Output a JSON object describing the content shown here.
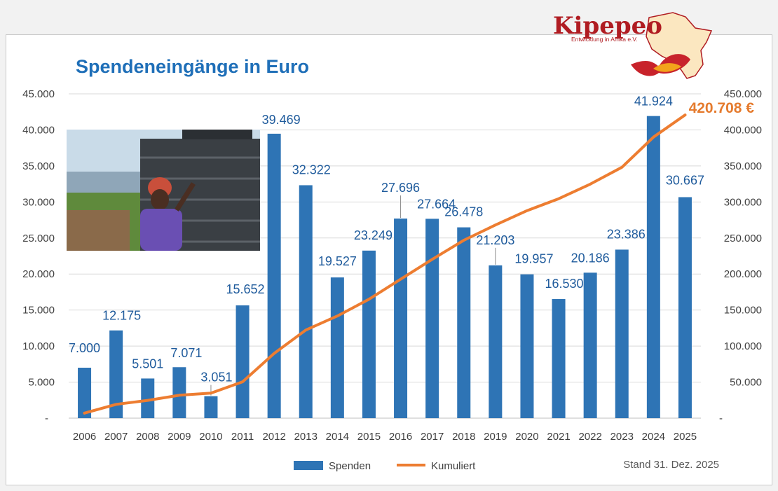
{
  "logo": {
    "word": "Kipepeo",
    "subtitle": "Entwicklung in Afrika e.V."
  },
  "footer": {
    "stand": "Stand 31. Dez. 2025"
  },
  "colors": {
    "bars": "#2e74b5",
    "line": "#ed7d31",
    "title": "#1f6fb8",
    "data_labels": "#1f5b9c",
    "total": "#e57b2e"
  },
  "chart_data": {
    "type": "bar",
    "title": "Spendeneingänge in Euro",
    "categories": [
      "2006",
      "2007",
      "2008",
      "2009",
      "2010",
      "2011",
      "2012",
      "2013",
      "2014",
      "2015",
      "2016",
      "2017",
      "2018",
      "2019",
      "2020",
      "2021",
      "2022",
      "2023",
      "2024",
      "2025"
    ],
    "series": [
      {
        "name": "Spenden",
        "type": "bar",
        "axis": "left",
        "values": [
          7000,
          12175,
          5501,
          7071,
          3051,
          15652,
          39469,
          32322,
          19527,
          23249,
          27696,
          27664,
          26478,
          21203,
          19957,
          16530,
          20186,
          23386,
          41924,
          30667
        ],
        "labels": [
          "7.000",
          "12.175",
          "5.501",
          "7.071",
          "3.051",
          "15.652",
          "39.469",
          "32.322",
          "19.527",
          "23.249",
          "27.696",
          "27.664",
          "26.478",
          "21.203",
          "19.957",
          "16.530",
          "20.186",
          "23.386",
          "41.924",
          "30.667"
        ]
      },
      {
        "name": "Kumuliert",
        "type": "line",
        "axis": "right",
        "values": [
          7000,
          19175,
          24676,
          31747,
          34798,
          50450,
          89919,
          122241,
          141768,
          165017,
          192713,
          220377,
          246855,
          268058,
          288015,
          304545,
          324731,
          348117,
          390041,
          420708
        ]
      }
    ],
    "left_axis": {
      "ylim": [
        0,
        45000
      ],
      "tick_values": [
        0,
        5000,
        10000,
        15000,
        20000,
        25000,
        30000,
        35000,
        40000,
        45000
      ],
      "tick_labels": [
        "-",
        "5.000",
        "10.000",
        "15.000",
        "20.000",
        "25.000",
        "30.000",
        "35.000",
        "40.000",
        "45.000"
      ]
    },
    "right_axis": {
      "ylim": [
        0,
        450000
      ],
      "tick_values": [
        0,
        50000,
        100000,
        150000,
        200000,
        250000,
        300000,
        350000,
        400000,
        450000
      ],
      "tick_labels": [
        "-",
        "50.000",
        "100.000",
        "150.000",
        "200.000",
        "250.000",
        "300.000",
        "350.000",
        "400.000",
        "450.000"
      ]
    },
    "total_label": "420.708 €",
    "grid": true,
    "legend_position": "bottom"
  }
}
